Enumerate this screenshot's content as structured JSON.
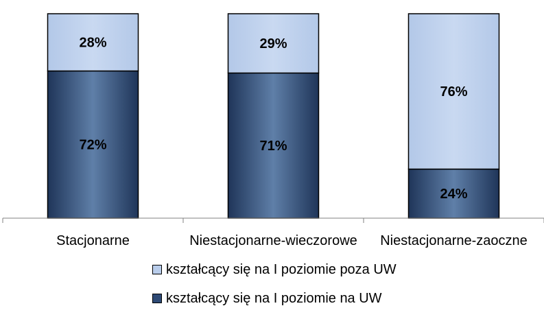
{
  "chart_data": {
    "type": "bar",
    "stacked": true,
    "categories": [
      "Stacjonarne",
      "Niestacjonarne-wieczorowe",
      "Niestacjonarne-zaoczne"
    ],
    "series": [
      {
        "name": "kształcący się na I poziomie na UW",
        "values": [
          72,
          71,
          24
        ],
        "labels": [
          "72%",
          "71%",
          "24%"
        ],
        "color": "#2e4a75"
      },
      {
        "name": "kształcący się na I poziomie poza UW",
        "values": [
          28,
          29,
          76
        ],
        "labels": [
          "28%",
          "29%",
          "76%"
        ],
        "color": "#b9cdeb"
      }
    ],
    "ylim": [
      0,
      100
    ],
    "unit": "%",
    "legend_position": "bottom",
    "grid": false
  }
}
